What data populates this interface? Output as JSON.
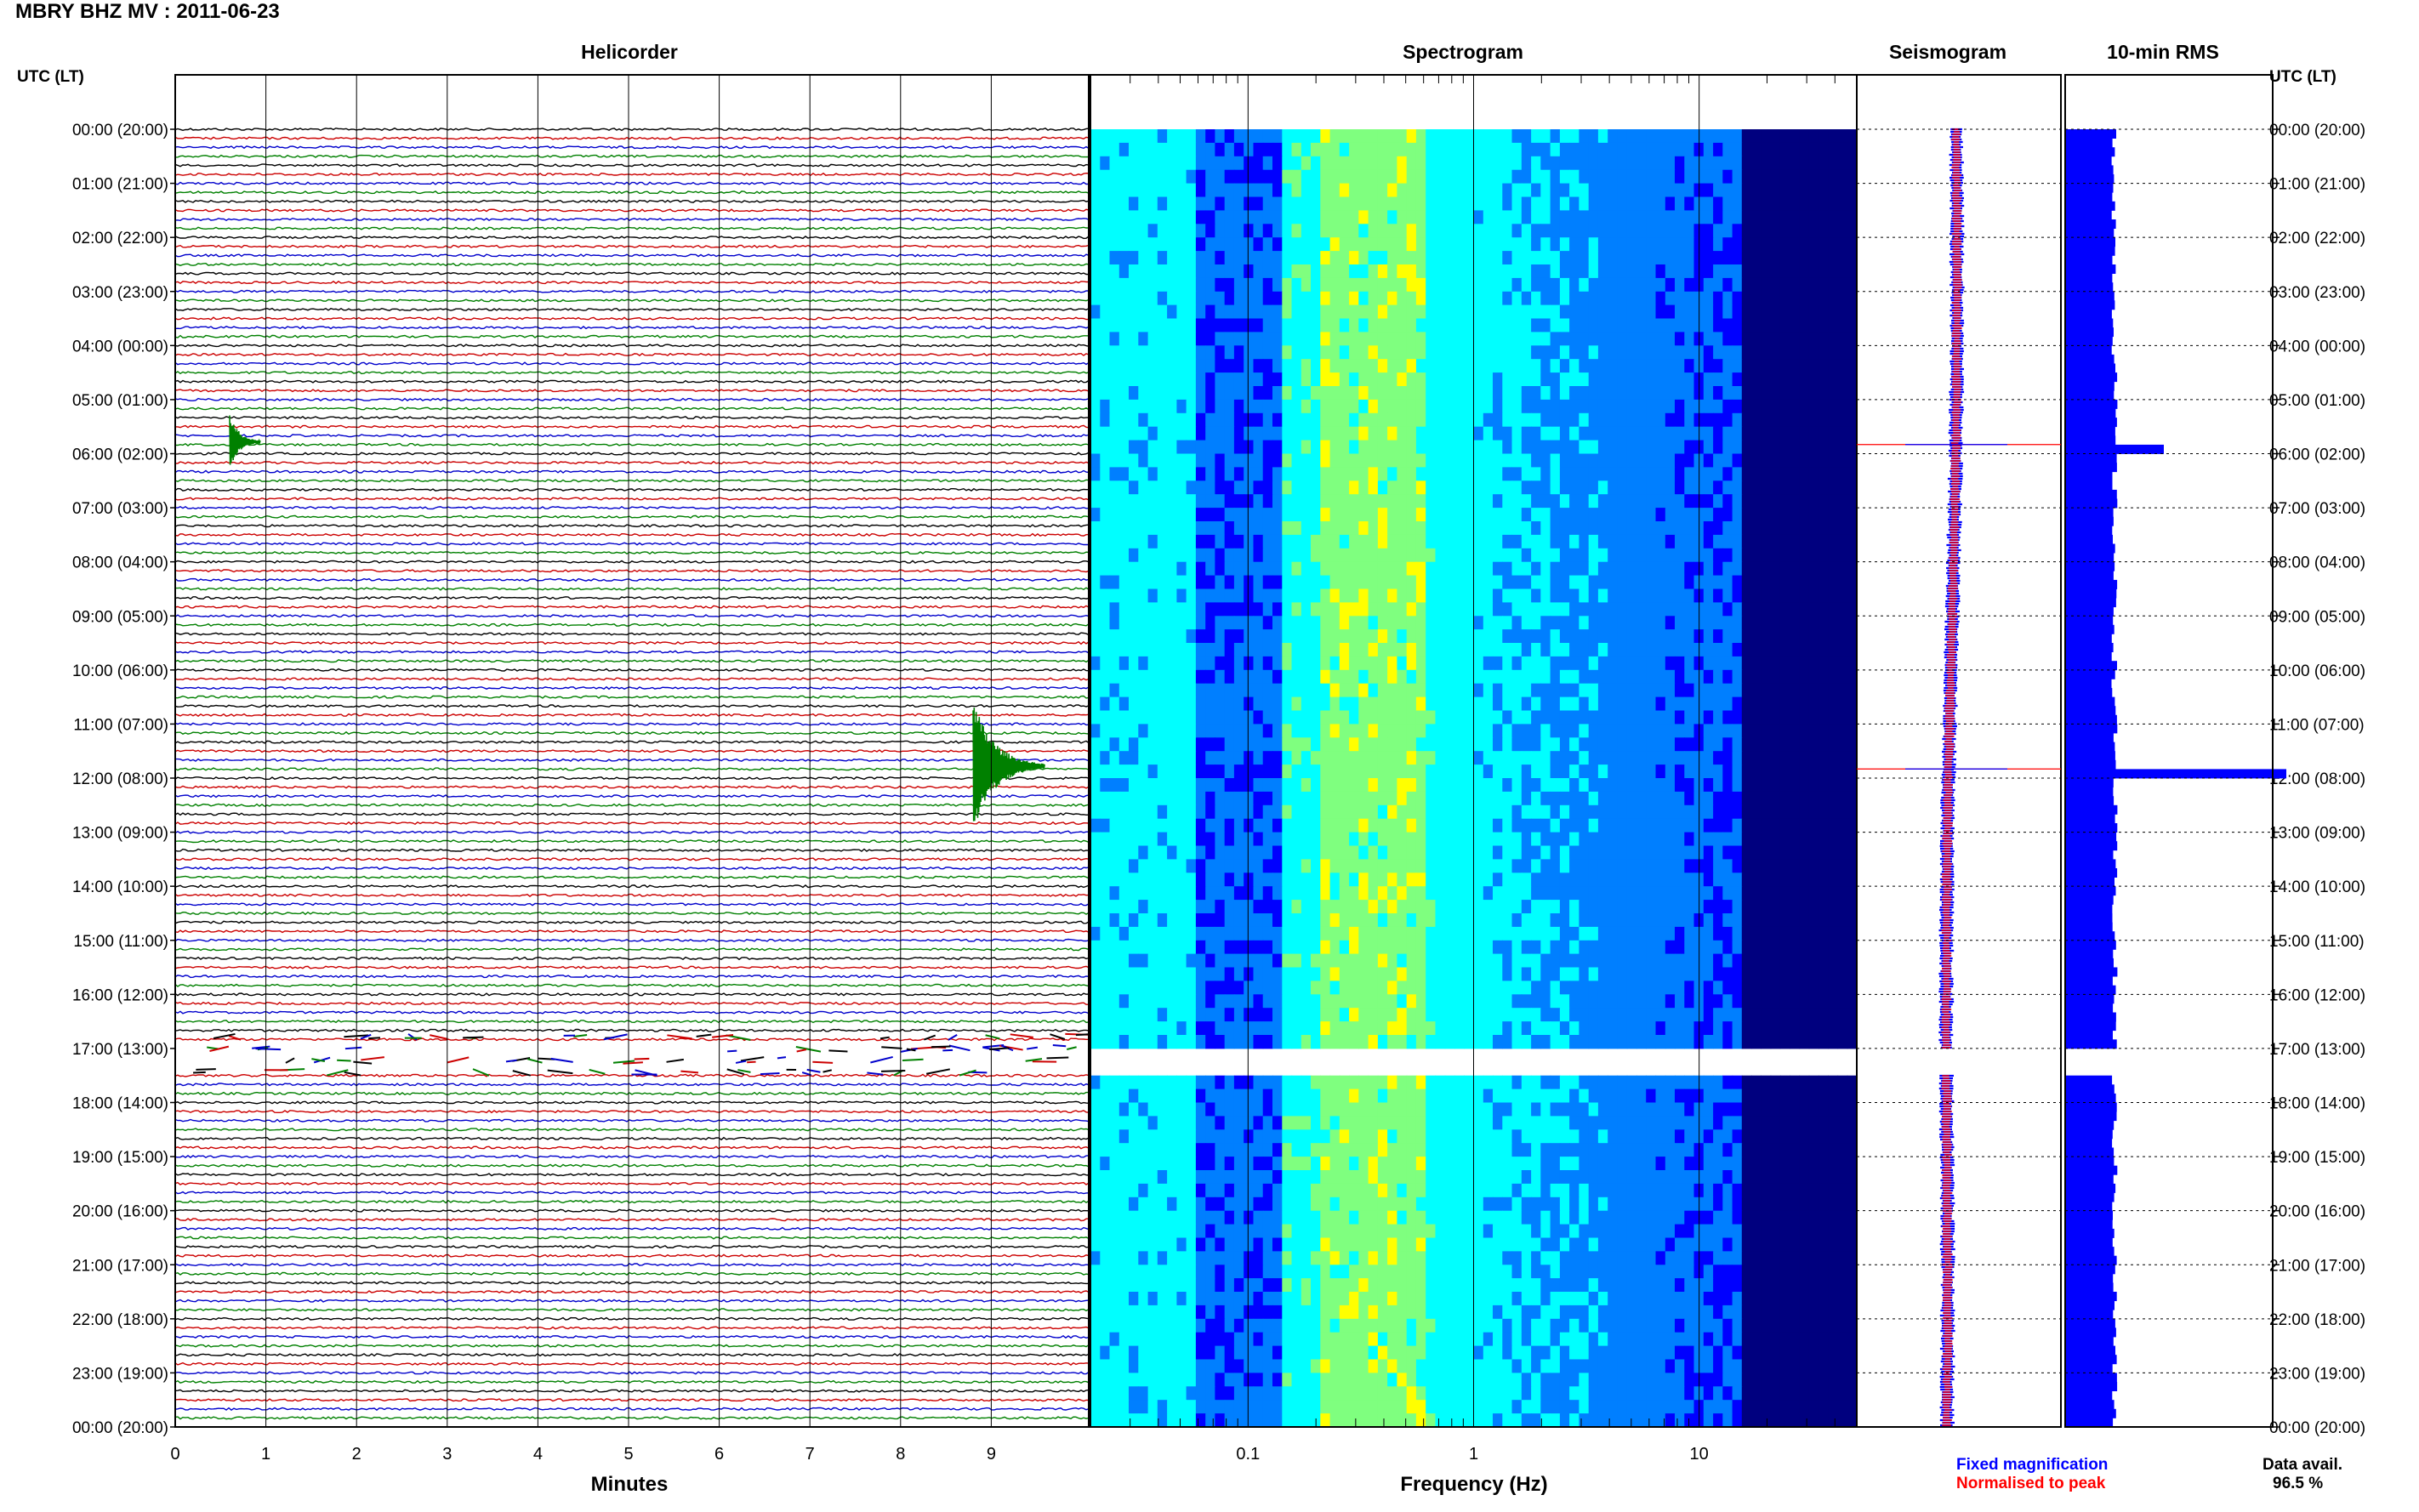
{
  "header": {
    "title": "MBRY BHZ MV : 2011-06-23",
    "utc_label": "UTC (LT)",
    "utc_label_right": "UTC (LT)"
  },
  "panels": {
    "helicorder": "Helicorder",
    "spectrogram": "Spectrogram",
    "seismogram": "Seismogram",
    "rms": "10-min RMS"
  },
  "axes": {
    "minutes_label": "Minutes",
    "frequency_label": "Frequency (Hz)"
  },
  "legend": {
    "fixed": "Fixed magnification",
    "normalised": "Normalised to peak",
    "fixed_color": "#0000ff",
    "normalised_color": "#ff0000"
  },
  "availability": {
    "label": "Data avail.",
    "value": "96.5 %"
  },
  "chart_data": [
    {
      "type": "line",
      "name": "helicorder",
      "xlabel": "Minutes",
      "xlim": [
        0,
        10
      ],
      "x_ticks": [
        0,
        1,
        2,
        3,
        4,
        5,
        6,
        7,
        8,
        9
      ],
      "time_labels": [
        "00:00 (20:00)",
        "01:00 (21:00)",
        "02:00 (22:00)",
        "03:00 (23:00)",
        "04:00 (00:00)",
        "05:00 (01:00)",
        "06:00 (02:00)",
        "07:00 (03:00)",
        "08:00 (04:00)",
        "09:00 (05:00)",
        "10:00 (06:00)",
        "11:00 (07:00)",
        "12:00 (08:00)",
        "13:00 (09:00)",
        "14:00 (10:00)",
        "15:00 (11:00)",
        "16:00 (12:00)",
        "17:00 (13:00)",
        "18:00 (14:00)",
        "19:00 (15:00)",
        "20:00 (16:00)",
        "21:00 (17:00)",
        "22:00 (18:00)",
        "23:00 (19:00)",
        "00:00 (20:00)"
      ],
      "trace_colors": [
        "#000000",
        "#cc0000",
        "#0000cc",
        "#008000"
      ],
      "events": [
        {
          "hour": 5.7,
          "minute": 0.6,
          "amplitude": "medium"
        },
        {
          "hour": 11.7,
          "minute": 8.8,
          "amplitude": "large"
        }
      ],
      "data_gap_hours": [
        17.0,
        17.5
      ]
    },
    {
      "type": "heatmap",
      "name": "spectrogram",
      "xlabel": "Frequency (Hz)",
      "x_scale": "log",
      "xlim": [
        0.02,
        50
      ],
      "x_ticks": [
        "0.1",
        "1",
        "10"
      ],
      "peak_band_hz": [
        0.2,
        0.6
      ],
      "colormap": [
        "#00007f",
        "#0000ff",
        "#007fff",
        "#00ffff",
        "#7fff7f",
        "#ffff00"
      ],
      "data_gap_hours": [
        17.0,
        17.5
      ]
    },
    {
      "type": "line",
      "name": "seismogram",
      "series": [
        {
          "name": "Fixed magnification",
          "color": "#0000ff"
        },
        {
          "name": "Normalised to peak",
          "color": "#ff0000"
        }
      ],
      "event_hours": [
        5.8,
        11.8
      ]
    },
    {
      "type": "bar",
      "name": "10-min RMS",
      "orientation": "horizontal",
      "bins_per_hour": 6,
      "baseline_value": 1.0,
      "peaks": [
        {
          "hour": 5.8,
          "value": 2.0
        },
        {
          "hour": 11.8,
          "value": 4.5
        }
      ],
      "data_gap_hours": [
        17.0,
        17.5
      ]
    }
  ]
}
